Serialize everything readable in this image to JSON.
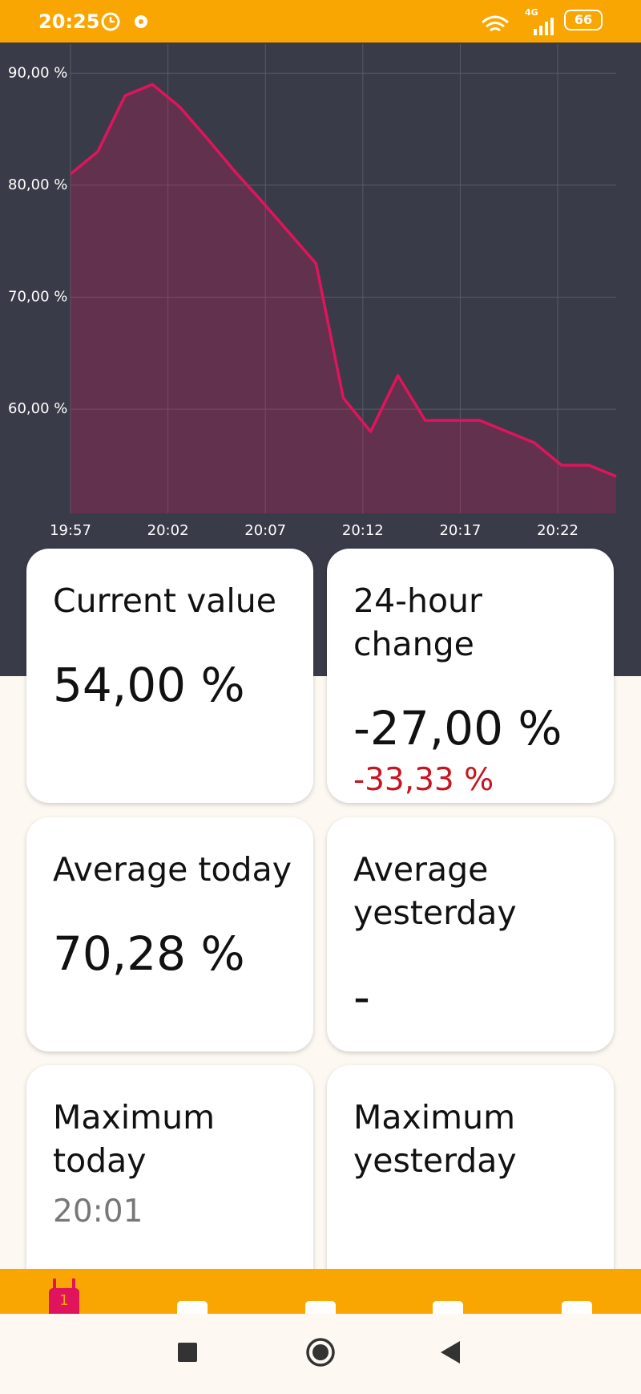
{
  "status_bar": {
    "time": "20:25",
    "network": "4G",
    "battery": "66"
  },
  "chart_data": {
    "type": "line",
    "x": [
      1197,
      1198.4,
      1199.8,
      1201.2,
      1202.6,
      1204,
      1205.4,
      1206.8,
      1208.2,
      1209.6,
      1211,
      1212.4,
      1213.8,
      1215.2,
      1216.6,
      1218,
      1219.4,
      1220.8,
      1222.2,
      1223.6,
      1225
    ],
    "series": [
      {
        "color": "#e0145c",
        "values": [
          81,
          83,
          88,
          89,
          87,
          84.2,
          81.3,
          78.6,
          75.8,
          73,
          61,
          58,
          63,
          59,
          59,
          59,
          58,
          57,
          55,
          55,
          54
        ]
      }
    ],
    "xlim": [
      1197,
      1225
    ],
    "xticks": [
      {
        "value": 1197,
        "label": "19:57"
      },
      {
        "value": 1202,
        "label": "20:02"
      },
      {
        "value": 1207,
        "label": "20:07"
      },
      {
        "value": 1212,
        "label": "20:12"
      },
      {
        "value": 1217,
        "label": "20:17"
      },
      {
        "value": 1222,
        "label": "20:22"
      }
    ],
    "ylim": [
      50.7,
      92.6
    ],
    "yticks": [
      {
        "value": 60,
        "label": "60,00 %"
      },
      {
        "value": 70,
        "label": "70,00 %"
      },
      {
        "value": 80,
        "label": "80,00 %"
      },
      {
        "value": 90,
        "label": "90,00 %"
      }
    ],
    "grid": true
  },
  "cards": [
    {
      "title": "Current value",
      "value": "54,00 %"
    },
    {
      "title": "24-hour change",
      "value": "-27,00 %",
      "secondary": "-33,33 %"
    },
    {
      "title": "Average today",
      "value": "70,28 %"
    },
    {
      "title": "Average yesterday",
      "value": "-"
    },
    {
      "title": "Maximum today",
      "secondary": "20:01"
    },
    {
      "title": "Maximum yesterday"
    }
  ],
  "tabs": {
    "active_day": "1"
  }
}
